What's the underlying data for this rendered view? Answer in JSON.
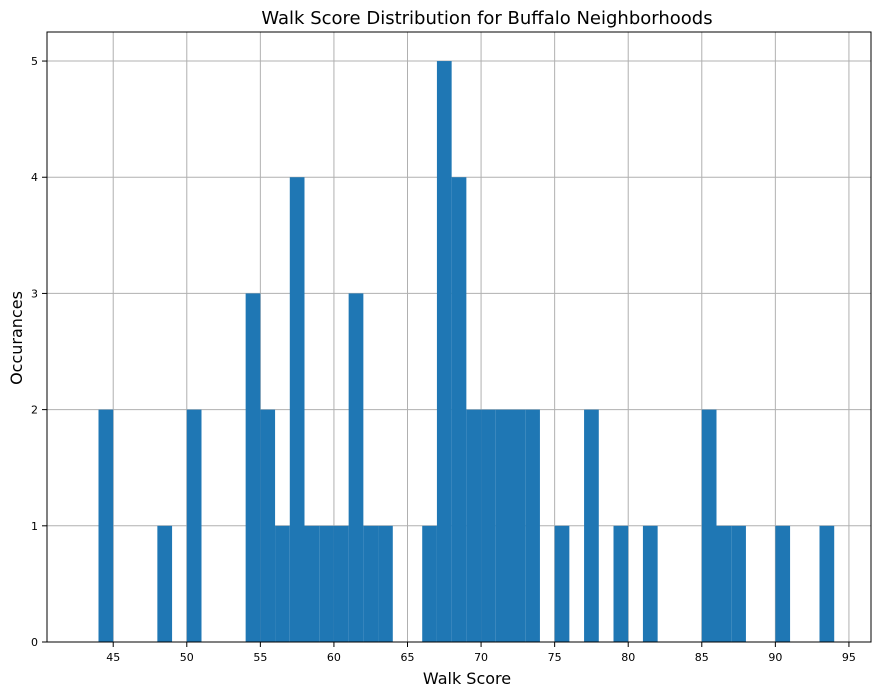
{
  "chart_data": {
    "type": "bar",
    "title": "Walk Score Distribution for Buffalo Neighborhoods",
    "xlabel": "Walk Score",
    "ylabel": "Occurances",
    "xlim": [
      40.5,
      96.5
    ],
    "ylim": [
      0,
      5.25
    ],
    "xticks": [
      45,
      50,
      55,
      60,
      65,
      70,
      75,
      80,
      85,
      90,
      95
    ],
    "yticks": [
      0,
      1,
      2,
      3,
      4,
      5
    ],
    "grid": true,
    "bar_color": "#1f77b4",
    "bins": [
      {
        "x0": 44,
        "x1": 45,
        "count": 2
      },
      {
        "x0": 48,
        "x1": 49,
        "count": 1
      },
      {
        "x0": 50,
        "x1": 51,
        "count": 2
      },
      {
        "x0": 54,
        "x1": 55,
        "count": 3
      },
      {
        "x0": 55,
        "x1": 56,
        "count": 2
      },
      {
        "x0": 56,
        "x1": 57,
        "count": 1
      },
      {
        "x0": 57,
        "x1": 58,
        "count": 4
      },
      {
        "x0": 58,
        "x1": 59,
        "count": 1
      },
      {
        "x0": 59,
        "x1": 60,
        "count": 1
      },
      {
        "x0": 60,
        "x1": 61,
        "count": 1
      },
      {
        "x0": 61,
        "x1": 62,
        "count": 3
      },
      {
        "x0": 62,
        "x1": 63,
        "count": 1
      },
      {
        "x0": 63,
        "x1": 64,
        "count": 1
      },
      {
        "x0": 66,
        "x1": 67,
        "count": 1
      },
      {
        "x0": 67,
        "x1": 68,
        "count": 5
      },
      {
        "x0": 68,
        "x1": 69,
        "count": 4
      },
      {
        "x0": 69,
        "x1": 70,
        "count": 2
      },
      {
        "x0": 70,
        "x1": 71,
        "count": 2
      },
      {
        "x0": 71,
        "x1": 72,
        "count": 2
      },
      {
        "x0": 72,
        "x1": 73,
        "count": 2
      },
      {
        "x0": 73,
        "x1": 74,
        "count": 2
      },
      {
        "x0": 75,
        "x1": 76,
        "count": 1
      },
      {
        "x0": 77,
        "x1": 78,
        "count": 2
      },
      {
        "x0": 79,
        "x1": 80,
        "count": 1
      },
      {
        "x0": 81,
        "x1": 82,
        "count": 1
      },
      {
        "x0": 85,
        "x1": 86,
        "count": 2
      },
      {
        "x0": 86,
        "x1": 87,
        "count": 1
      },
      {
        "x0": 87,
        "x1": 88,
        "count": 1
      },
      {
        "x0": 90,
        "x1": 91,
        "count": 1
      },
      {
        "x0": 93,
        "x1": 94,
        "count": 1
      }
    ]
  }
}
